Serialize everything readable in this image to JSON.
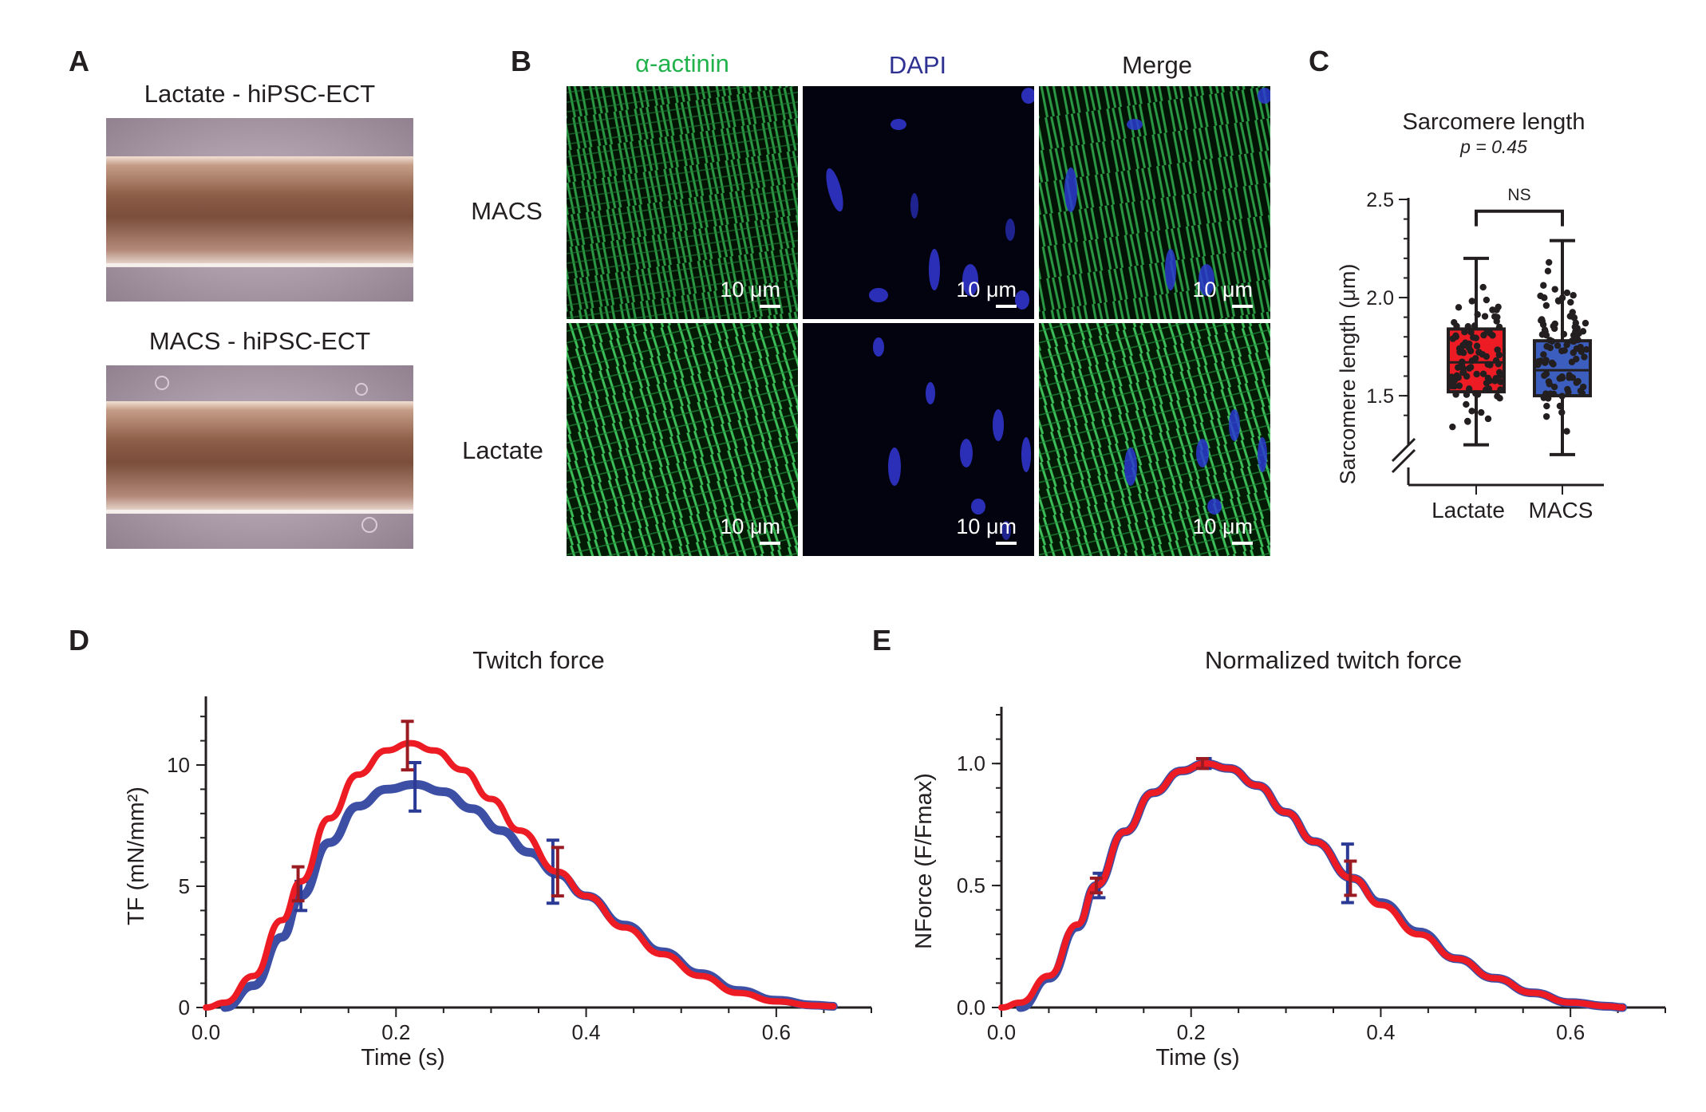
{
  "panels": {
    "A": {
      "label": "A",
      "images": [
        {
          "caption": "Lactate - hiPSC-ECT"
        },
        {
          "caption": "MACS - hiPSC-ECT"
        }
      ]
    },
    "B": {
      "label": "B",
      "columns": [
        "α-actinin",
        "DAPI",
        "Merge"
      ],
      "rows": [
        "MACS",
        "Lactate"
      ],
      "scale_bar": "10 μm",
      "colors": {
        "actinin": "#22b24c",
        "dapi": "#2e3192",
        "merge": "#231f20"
      }
    },
    "C": {
      "label": "C"
    },
    "D": {
      "label": "D"
    },
    "E": {
      "label": "E"
    }
  },
  "chart_data": [
    {
      "id": "C",
      "type": "box",
      "title": "Sarcomere length",
      "subtitle": "p = 0.45",
      "significance": "NS",
      "ylabel": "Sarcomere length  (μm)",
      "xlabel": "",
      "categories": [
        "Lactate",
        "MACS"
      ],
      "yticks": [
        "1.5",
        "2.0",
        "2.5"
      ],
      "ylim": [
        1.35,
        2.5
      ],
      "axis_break": true,
      "series": [
        {
          "category": "Lactate",
          "color": "#ed1c24",
          "min": 1.25,
          "q1": 1.52,
          "median": 1.67,
          "q3": 1.84,
          "max": 2.2
        },
        {
          "category": "MACS",
          "color": "#3c5fbf",
          "min": 1.2,
          "q1": 1.5,
          "median": 1.63,
          "q3": 1.78,
          "max": 2.29
        }
      ]
    },
    {
      "id": "D",
      "type": "line",
      "title": "Twitch force",
      "xlabel": "Time (s)",
      "ylabel": "TF (mN/mm²)",
      "xlim": [
        0,
        0.7
      ],
      "ylim": [
        0,
        12.5
      ],
      "xticks": [
        "0.0",
        "0.2",
        "0.4",
        "0.6"
      ],
      "yticks": [
        "0",
        "5",
        "10"
      ],
      "series": [
        {
          "color": "#3c4fa5",
          "x": [
            0.02,
            0.05,
            0.08,
            0.1,
            0.13,
            0.16,
            0.19,
            0.22,
            0.25,
            0.28,
            0.31,
            0.34,
            0.37,
            0.4,
            0.44,
            0.48,
            0.52,
            0.56,
            0.6,
            0.64,
            0.66
          ],
          "y": [
            0,
            0.9,
            2.9,
            4.6,
            6.8,
            8.3,
            9.0,
            9.2,
            8.9,
            8.2,
            7.3,
            6.4,
            5.5,
            4.6,
            3.4,
            2.3,
            1.4,
            0.7,
            0.3,
            0.1,
            0.05
          ],
          "error_bars": [
            {
              "x": 0.1,
              "y": 4.6,
              "err": 0.6
            },
            {
              "x": 0.22,
              "y": 9.1,
              "err": 1.0
            },
            {
              "x": 0.365,
              "y": 5.6,
              "err": 1.3
            }
          ]
        },
        {
          "color": "#ed1c24",
          "x": [
            0,
            0.02,
            0.05,
            0.08,
            0.1,
            0.13,
            0.16,
            0.19,
            0.215,
            0.24,
            0.27,
            0.3,
            0.33,
            0.37,
            0.4,
            0.44,
            0.48,
            0.52,
            0.56,
            0.6,
            0.64,
            0.66
          ],
          "y": [
            0,
            0.2,
            1.3,
            3.6,
            5.2,
            7.8,
            9.6,
            10.6,
            10.9,
            10.6,
            9.8,
            8.6,
            7.3,
            5.6,
            4.6,
            3.3,
            2.2,
            1.3,
            0.6,
            0.25,
            0.08,
            0.05
          ],
          "error_bars": [
            {
              "x": 0.097,
              "y": 5.1,
              "err": 0.7
            },
            {
              "x": 0.212,
              "y": 10.8,
              "err": 1.0
            },
            {
              "x": 0.37,
              "y": 5.6,
              "err": 1.0
            }
          ]
        }
      ]
    },
    {
      "id": "E",
      "type": "line",
      "title": "Normalized twitch force",
      "xlabel": "Time (s)",
      "ylabel": "NForce (F/Fmax)",
      "xlim": [
        0,
        0.7
      ],
      "ylim": [
        0,
        1.2
      ],
      "xticks": [
        "0.0",
        "0.2",
        "0.4",
        "0.6"
      ],
      "yticks": [
        "0.0",
        "0.5",
        "1.0"
      ],
      "series": [
        {
          "color": "#3c4fa5",
          "x": [
            0.02,
            0.05,
            0.08,
            0.1,
            0.13,
            0.16,
            0.19,
            0.215,
            0.24,
            0.27,
            0.3,
            0.33,
            0.37,
            0.4,
            0.44,
            0.48,
            0.52,
            0.56,
            0.6,
            0.64,
            0.655
          ],
          "y": [
            0,
            0.12,
            0.33,
            0.5,
            0.72,
            0.88,
            0.97,
            1.0,
            0.98,
            0.91,
            0.8,
            0.68,
            0.53,
            0.43,
            0.31,
            0.2,
            0.12,
            0.06,
            0.02,
            0.005,
            0.0
          ],
          "error_bars": [
            {
              "x": 0.103,
              "y": 0.5,
              "err": 0.05
            },
            {
              "x": 0.215,
              "y": 1.0,
              "err": 0.02
            },
            {
              "x": 0.365,
              "y": 0.55,
              "err": 0.12
            }
          ]
        },
        {
          "color": "#ed1c24",
          "x": [
            0.0,
            0.02,
            0.05,
            0.08,
            0.1,
            0.13,
            0.16,
            0.19,
            0.215,
            0.24,
            0.27,
            0.3,
            0.33,
            0.37,
            0.4,
            0.44,
            0.48,
            0.52,
            0.56,
            0.6,
            0.64,
            0.655
          ],
          "y": [
            0,
            0.02,
            0.13,
            0.34,
            0.5,
            0.72,
            0.88,
            0.97,
            1.0,
            0.98,
            0.91,
            0.8,
            0.68,
            0.53,
            0.42,
            0.3,
            0.2,
            0.12,
            0.06,
            0.02,
            0.005,
            0.0
          ],
          "error_bars": [
            {
              "x": 0.1,
              "y": 0.5,
              "err": 0.03
            },
            {
              "x": 0.212,
              "y": 1.0,
              "err": 0.02
            },
            {
              "x": 0.368,
              "y": 0.53,
              "err": 0.07
            }
          ]
        }
      ]
    }
  ]
}
